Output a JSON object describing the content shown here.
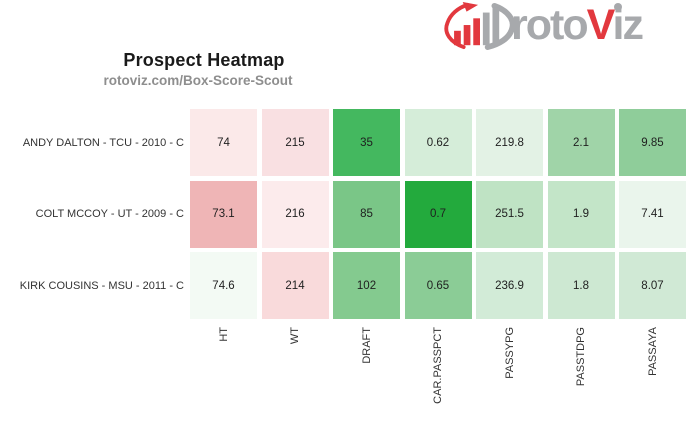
{
  "logo": {
    "part_roto": "roto",
    "part_v": "V",
    "part_iz": "iz",
    "gray_color": "#a7a9ac",
    "red_color": "#e2383e"
  },
  "header": {
    "title": "Prospect Heatmap",
    "subtitle": "rotoviz.com/Box-Score-Scout",
    "title_color": "#1a1a1a",
    "subtitle_color": "#8e8e8e"
  },
  "chart_data": {
    "type": "heatmap",
    "title": "Prospect Heatmap",
    "subtitle": "rotoviz.com/Box-Score-Scout",
    "rows": [
      "ANDY DALTON - TCU - 2010 - C",
      "COLT MCCOY - UT - 2009 - C",
      "KIRK COUSINS - MSU - 2011 - C"
    ],
    "columns": [
      "HT",
      "WT",
      "DRAFT",
      "CAR.PASSPCT",
      "PASSYPG",
      "PASSTDPG",
      "PASSAYA"
    ],
    "values": [
      [
        74,
        215,
        35,
        0.62,
        219.8,
        2.1,
        9.85
      ],
      [
        73.1,
        216,
        85,
        0.7,
        251.5,
        1.9,
        7.41
      ],
      [
        74.6,
        214,
        102,
        0.65,
        236.9,
        1.8,
        8.07
      ]
    ],
    "cell_colors": [
      [
        "#fbe9e9",
        "#f9e0e2",
        "#44b85f",
        "#d5edd9",
        "#e3f2e5",
        "#a0d4a8",
        "#8fcd9a"
      ],
      [
        "#efb5b6",
        "#fcebec",
        "#7ac687",
        "#23aa3d",
        "#bfe3c4",
        "#c3e5c8",
        "#eaf5ec"
      ],
      [
        "#f3faf4",
        "#f9dadb",
        "#84ca8f",
        "#8bcc96",
        "#d2ebd7",
        "#cde8d2",
        "#d0e9d5"
      ]
    ],
    "legend_position": "none",
    "grid": false,
    "color_scale_note": "red = low, green = high"
  }
}
